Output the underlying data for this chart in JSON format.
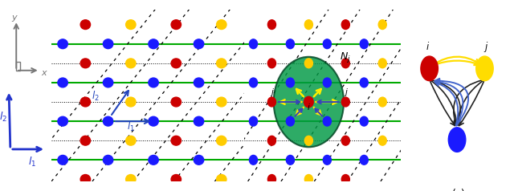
{
  "bg_color": "#ffffff",
  "green": "#00aa00",
  "blue_arrow": "#2244bb",
  "color_map": {
    "r": "#cc0000",
    "y": "#ffcc00",
    "b": "#1a1aff"
  },
  "atom_r": 0.22,
  "sublabel_fontsize": 9,
  "coord_xy_color": "#888888",
  "coord_l_color": "#2233cc",
  "panel_a_atoms": [
    [
      1.5,
      7.3,
      "r"
    ],
    [
      3.5,
      7.3,
      "y"
    ],
    [
      5.5,
      7.3,
      "r"
    ],
    [
      7.5,
      7.3,
      "y"
    ],
    [
      0.5,
      6.4,
      "b"
    ],
    [
      2.5,
      6.4,
      "b"
    ],
    [
      4.5,
      6.4,
      "b"
    ],
    [
      6.5,
      6.4,
      "b"
    ],
    [
      1.5,
      5.5,
      "r"
    ],
    [
      3.5,
      5.5,
      "y"
    ],
    [
      5.5,
      5.5,
      "r"
    ],
    [
      7.5,
      5.5,
      "y"
    ],
    [
      0.5,
      4.6,
      "b"
    ],
    [
      2.5,
      4.6,
      "b"
    ],
    [
      4.5,
      4.6,
      "b"
    ],
    [
      6.5,
      4.6,
      "b"
    ],
    [
      1.5,
      3.7,
      "r"
    ],
    [
      3.5,
      3.7,
      "y"
    ],
    [
      5.5,
      3.7,
      "r"
    ],
    [
      7.5,
      3.7,
      "y"
    ],
    [
      0.5,
      2.8,
      "b"
    ],
    [
      2.5,
      2.8,
      "b"
    ],
    [
      4.5,
      2.8,
      "b"
    ],
    [
      6.5,
      2.8,
      "b"
    ],
    [
      1.5,
      1.9,
      "r"
    ],
    [
      3.5,
      1.9,
      "y"
    ],
    [
      5.5,
      1.9,
      "r"
    ],
    [
      7.5,
      1.9,
      "y"
    ],
    [
      0.5,
      1.0,
      "b"
    ],
    [
      2.5,
      1.0,
      "b"
    ],
    [
      4.5,
      1.0,
      "b"
    ],
    [
      6.5,
      1.0,
      "b"
    ],
    [
      1.5,
      0.1,
      "r"
    ],
    [
      3.5,
      0.1,
      "y"
    ],
    [
      5.5,
      0.1,
      "r"
    ],
    [
      7.5,
      0.1,
      "y"
    ]
  ],
  "panel_b_atoms": [
    [
      1.5,
      7.3,
      "r"
    ],
    [
      3.5,
      7.3,
      "y"
    ],
    [
      5.5,
      7.3,
      "r"
    ],
    [
      7.5,
      7.3,
      "y"
    ],
    [
      0.5,
      6.4,
      "b"
    ],
    [
      2.5,
      6.4,
      "b"
    ],
    [
      4.5,
      6.4,
      "b"
    ],
    [
      6.5,
      6.4,
      "b"
    ],
    [
      1.5,
      5.5,
      "r"
    ],
    [
      3.5,
      5.5,
      "y"
    ],
    [
      5.5,
      5.5,
      "r"
    ],
    [
      7.5,
      5.5,
      "y"
    ],
    [
      0.5,
      4.6,
      "b"
    ],
    [
      2.5,
      4.6,
      "b"
    ],
    [
      4.5,
      4.6,
      "b"
    ],
    [
      6.5,
      4.6,
      "b"
    ],
    [
      1.5,
      3.7,
      "r"
    ],
    [
      3.5,
      3.7,
      "y"
    ],
    [
      5.5,
      3.7,
      "r"
    ],
    [
      7.5,
      3.7,
      "y"
    ],
    [
      0.5,
      2.8,
      "b"
    ],
    [
      2.5,
      2.8,
      "b"
    ],
    [
      4.5,
      2.8,
      "b"
    ],
    [
      6.5,
      2.8,
      "b"
    ],
    [
      1.5,
      1.9,
      "r"
    ],
    [
      3.5,
      1.9,
      "y"
    ],
    [
      5.5,
      1.9,
      "r"
    ],
    [
      7.5,
      1.9,
      "y"
    ],
    [
      0.5,
      1.0,
      "b"
    ],
    [
      2.5,
      1.0,
      "b"
    ],
    [
      4.5,
      1.0,
      "b"
    ],
    [
      6.5,
      1.0,
      "b"
    ],
    [
      1.5,
      0.1,
      "r"
    ],
    [
      3.5,
      0.1,
      "y"
    ],
    [
      5.5,
      0.1,
      "r"
    ]
  ]
}
